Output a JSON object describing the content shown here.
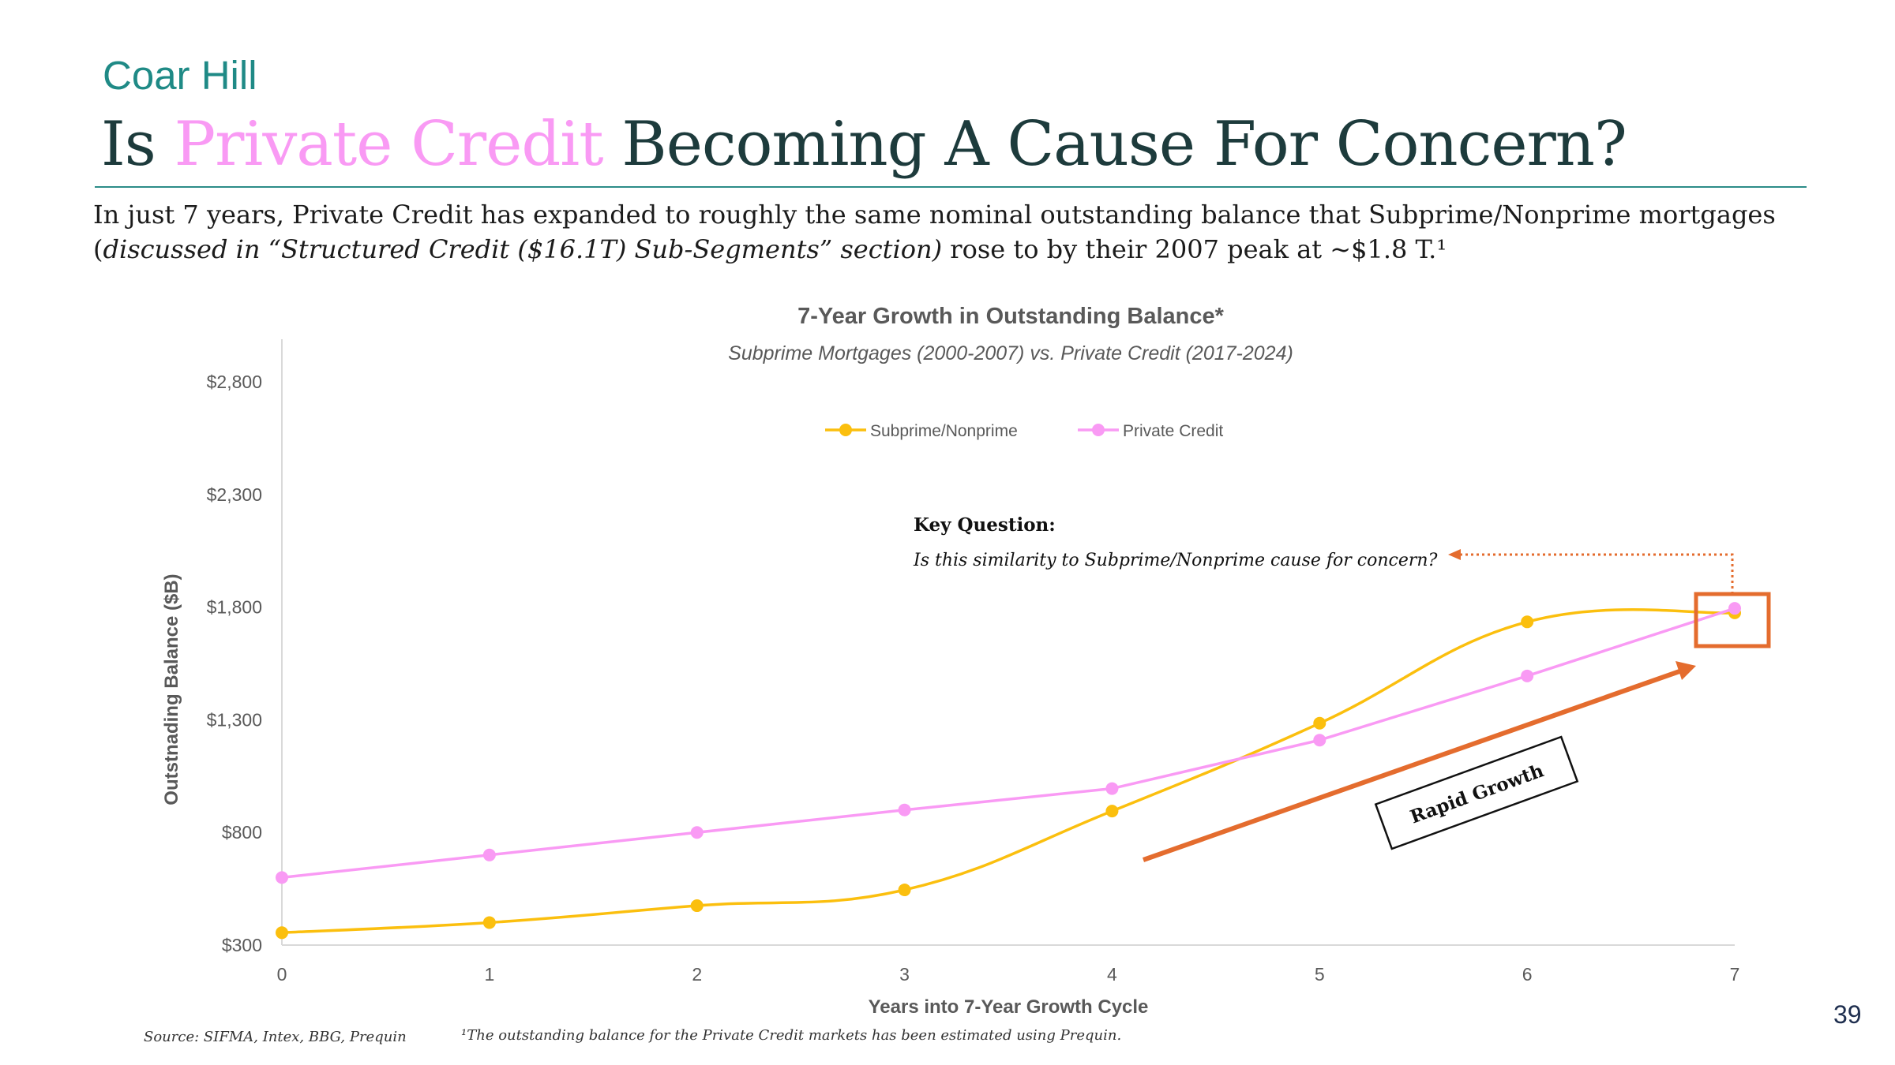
{
  "slide": {
    "brand": "Coar Hill",
    "title_before": "Is ",
    "title_highlight": "Private Credit",
    "title_after": " Becoming A Cause For Concern?",
    "intro_line1": "In just 7 years, Private Credit has expanded to roughly the same nominal outstanding balance that Subprime/Nonprime mortgages",
    "intro_paren_open": "(",
    "intro_italic": "discussed in “Structured Credit ($16.1T) Sub-Segments” section)",
    "intro_tail": "  rose to by their 2007 peak at ~$1.8 T.¹",
    "source": "Source: SIFMA, Intex, BBG, Prequin",
    "footnote": "¹The outstanding balance for the Private Credit markets has been estimated using Prequin.",
    "page_number": "39"
  },
  "colors": {
    "brand": "#1f8a86",
    "title": "#1d3b3c",
    "highlight": "#f99af4",
    "subprime": "#fbbf0e",
    "private_credit": "#f99af4",
    "annotation": "#e46c2e"
  },
  "chart_data": {
    "type": "line",
    "title": "7-Year Growth in Outstanding Balance*",
    "subtitle": "Subprime Mortgages (2000-2007) vs. Private Credit (2017-2024)",
    "xlabel": "Years into 7-Year Growth Cycle",
    "ylabel": "Outstnading Balance ($B)",
    "x": [
      0,
      1,
      2,
      3,
      4,
      5,
      6,
      7
    ],
    "x_tick_labels": [
      "0",
      "1",
      "2",
      "3",
      "4",
      "5",
      "6",
      "7"
    ],
    "y_tick_values": [
      300,
      800,
      1300,
      1800,
      2300,
      2800
    ],
    "y_tick_labels": [
      "$300",
      "$800",
      "$1,300",
      "$1,800",
      "$2,300",
      "$2,800"
    ],
    "ylim": [
      300,
      2990
    ],
    "xlim": [
      0,
      7
    ],
    "grid": false,
    "legend_position": "top-center",
    "series": [
      {
        "name": "Subprime/Nonprime",
        "color": "#fbbf0e",
        "smooth": true,
        "values": [
          355,
          400,
          475,
          545,
          895,
          1285,
          1735,
          1775
        ]
      },
      {
        "name": "Private Credit",
        "color": "#f99af4",
        "smooth": false,
        "values": [
          600,
          700,
          800,
          900,
          995,
          1210,
          1495,
          1795
        ]
      }
    ],
    "annotations": {
      "key_question_title": "Key Question:",
      "key_question_text": "Is this similarity to Subprime/Nonprime cause for concern?",
      "rapid_growth_label": "Rapid Growth"
    }
  }
}
